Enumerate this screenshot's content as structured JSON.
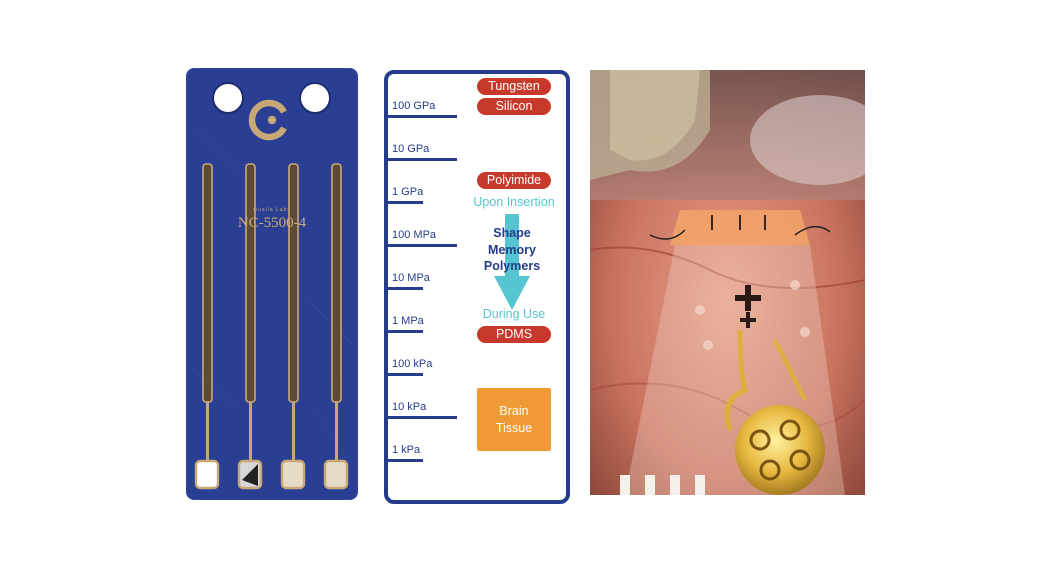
{
  "probe": {
    "brand": "Qualia Labs",
    "model": "NC-5500-4",
    "colors": {
      "card": "#2a3f93",
      "gold": "#c9a877"
    }
  },
  "scale": {
    "ticks": [
      "100 GPa",
      "10 GPa",
      "1 GPa",
      "100 MPa",
      "10 MPa",
      "1 MPa",
      "100 kPa",
      "10 kPa",
      "1 kPa"
    ],
    "materials": {
      "tungsten": "Tungsten",
      "silicon": "Silicon",
      "polyimide": "Polyimide",
      "pdms": "PDMS"
    },
    "upon_insertion": "Upon Insertion",
    "smp_lines": [
      "Shape",
      "Memory",
      "Polymers"
    ],
    "during_use": "During Use",
    "brain_lines": [
      "Brain",
      "Tissue"
    ],
    "colors": {
      "frame": "#233c8c",
      "pill": "#c73a2b",
      "cyan": "#57c4d1",
      "brain": "#ef9a35"
    }
  }
}
